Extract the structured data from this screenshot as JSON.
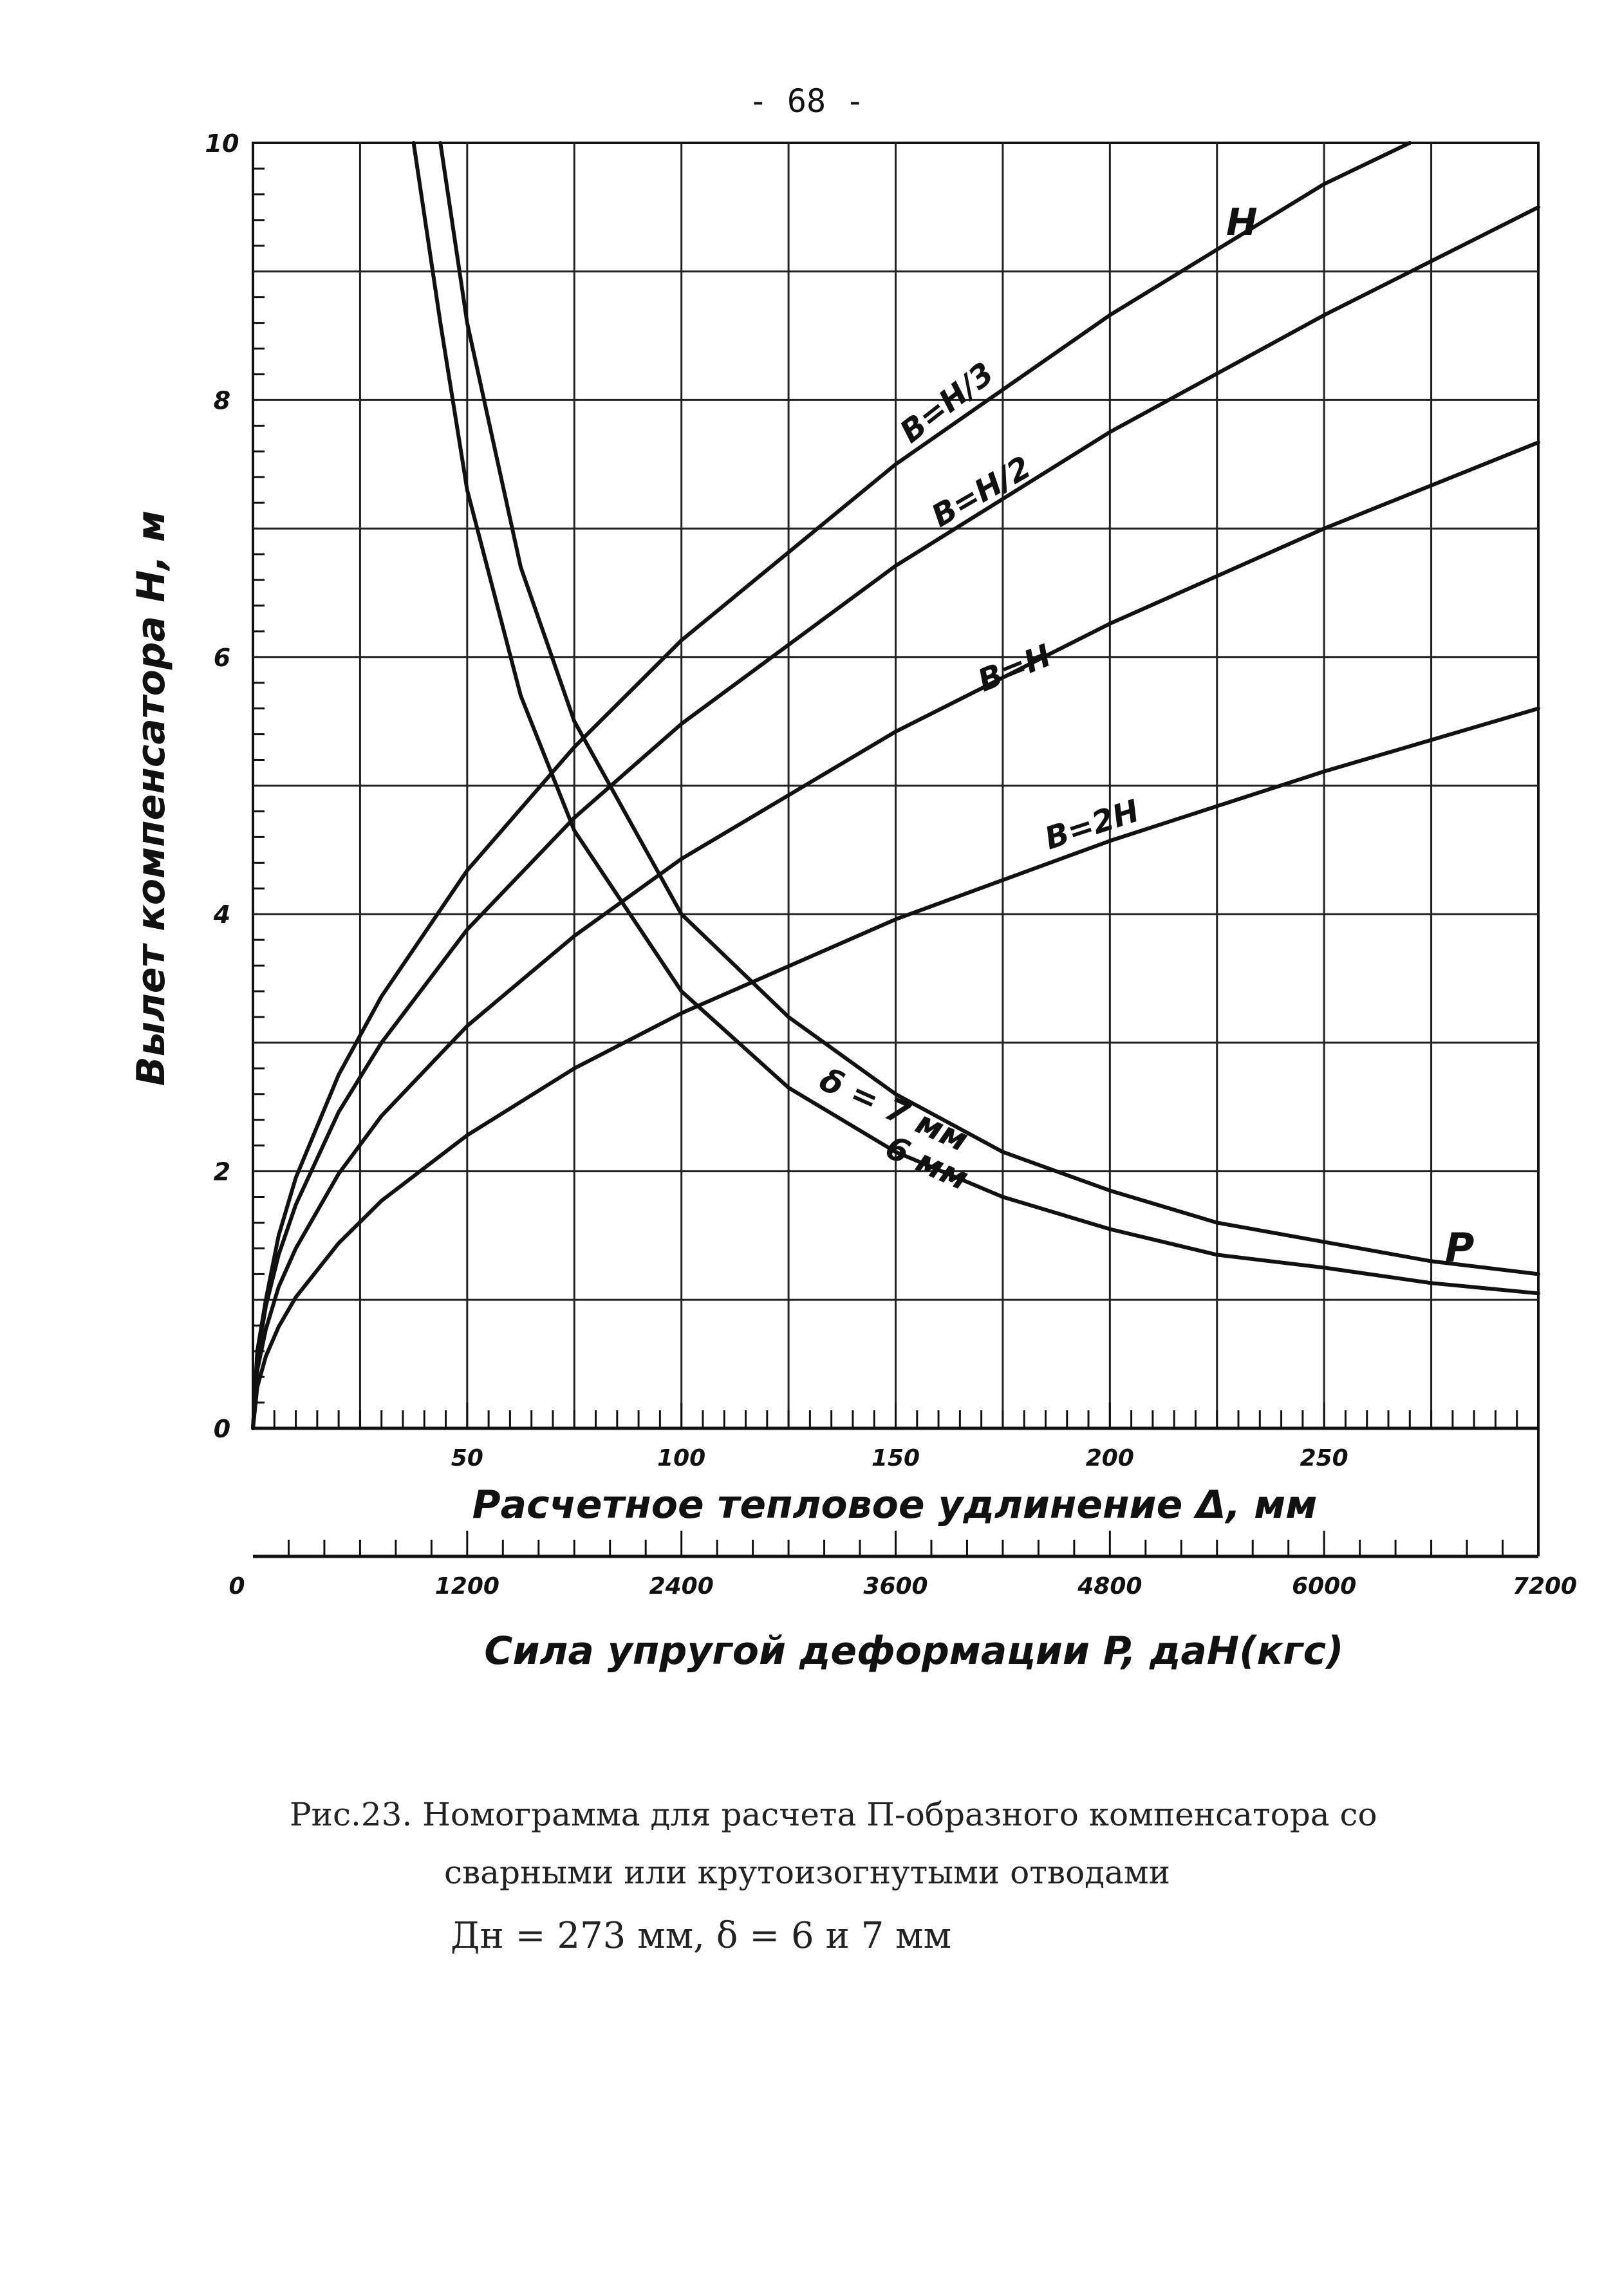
{
  "page": {
    "number": "- 68 -"
  },
  "caption": {
    "line1": "Рис.23. Номограмма для расчета П-образного компенсатора со",
    "line2": "сварными или крутоизогнутыми отводами",
    "line3": "Дн = 273 мм,  δ = 6 и 7 мм"
  },
  "chart_data": {
    "type": "line",
    "title": "",
    "ylabel": "Вылет компенсатора H, м",
    "xlabel": "Расчетное тепловое удлинение Δ, мм",
    "x2label": "Сила упругой деформации P, даН(кгс)",
    "ylim": [
      0,
      10
    ],
    "xlim": [
      0,
      300
    ],
    "x2lim": [
      0,
      7200
    ],
    "yticks": [
      "0",
      "2",
      "4",
      "6",
      "8",
      "10"
    ],
    "xticks": [
      "50",
      "100",
      "150",
      "200",
      "250"
    ],
    "x2ticks": [
      "0",
      "1200",
      "2400",
      "3600",
      "4800",
      "6000",
      "7200"
    ],
    "grid": true,
    "series": [
      {
        "name": "В=Н/3",
        "axis": "delta",
        "x": [
          0,
          1,
          3,
          6,
          10,
          20,
          30,
          50,
          75,
          100,
          150,
          200,
          250,
          270
        ],
        "y": [
          0,
          0.6,
          1.0,
          1.5,
          1.95,
          2.75,
          3.36,
          4.34,
          5.3,
          6.13,
          7.5,
          8.66,
          9.68,
          10.0
        ]
      },
      {
        "name": "В=Н/2",
        "axis": "delta",
        "x": [
          0,
          1,
          3,
          6,
          10,
          20,
          30,
          50,
          75,
          100,
          150,
          200,
          250,
          300
        ],
        "y": [
          0,
          0.55,
          0.95,
          1.35,
          1.74,
          2.46,
          3.0,
          3.88,
          4.75,
          5.48,
          6.71,
          7.75,
          8.66,
          9.5
        ]
      },
      {
        "name": "В=Н",
        "axis": "delta",
        "x": [
          0,
          1,
          3,
          6,
          10,
          20,
          30,
          50,
          75,
          100,
          150,
          200,
          250,
          300
        ],
        "y": [
          0,
          0.45,
          0.77,
          1.1,
          1.4,
          1.98,
          2.43,
          3.13,
          3.83,
          4.43,
          5.42,
          6.26,
          7.0,
          7.67
        ]
      },
      {
        "name": "В=2Н",
        "axis": "delta",
        "x": [
          0,
          1,
          3,
          6,
          10,
          20,
          30,
          50,
          75,
          100,
          150,
          200,
          250,
          300
        ],
        "y": [
          0,
          0.32,
          0.56,
          0.79,
          1.02,
          1.44,
          1.77,
          2.28,
          2.8,
          3.23,
          3.96,
          4.57,
          5.11,
          5.6
        ]
      },
      {
        "name": "δ = 7 мм",
        "axis": "force",
        "x": [
          1050,
          1200,
          1500,
          1800,
          2400,
          3000,
          3600,
          4200,
          4800,
          5400,
          6000,
          6600,
          7200
        ],
        "y": [
          10.0,
          8.6,
          6.7,
          5.5,
          4.0,
          3.2,
          2.6,
          2.15,
          1.85,
          1.6,
          1.45,
          1.3,
          1.2
        ]
      },
      {
        "name": "6 мм",
        "axis": "force",
        "x": [
          900,
          1050,
          1200,
          1500,
          1800,
          2400,
          3000,
          3600,
          4200,
          4800,
          5400,
          6000,
          6600,
          7200
        ],
        "y": [
          10.0,
          8.6,
          7.3,
          5.7,
          4.65,
          3.4,
          2.65,
          2.15,
          1.8,
          1.55,
          1.35,
          1.25,
          1.13,
          1.05
        ]
      }
    ],
    "annotations": {
      "curve_h": "H",
      "b_h3": "В=Н/3",
      "b_h2": "В=Н/2",
      "b_h": "В=Н",
      "b_2h": "В=2Н",
      "delta7": "δ = 7 мм",
      "delta6": "6 мм",
      "curve_p": "P"
    }
  }
}
